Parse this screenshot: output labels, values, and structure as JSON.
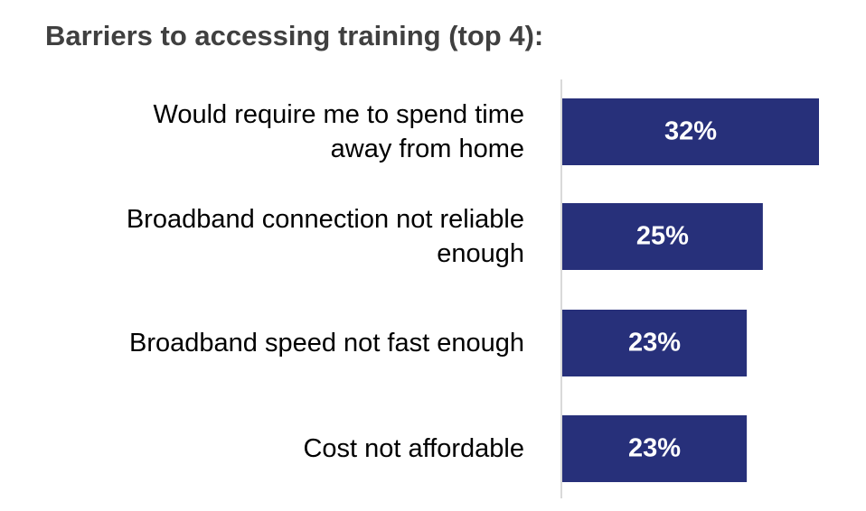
{
  "chart_data": {
    "type": "bar",
    "orientation": "horizontal",
    "title": "Barriers to accessing training (top 4):",
    "categories": [
      [
        "Would require me to spend time",
        "away from home"
      ],
      [
        "Broadband connection not reliable",
        "enough"
      ],
      [
        "Broadband speed not fast enough"
      ],
      [
        "Cost not affordable"
      ]
    ],
    "values": [
      32,
      25,
      23,
      23
    ],
    "value_labels": [
      "32%",
      "25%",
      "23%",
      "23%"
    ],
    "xlim": [
      0,
      32
    ],
    "grid": false,
    "legend": "none",
    "colors": {
      "bar": "#27307a",
      "axis": "#d9d9d9",
      "bar_label": "#ffffff",
      "title": "#404040",
      "category_label": "#000000"
    }
  }
}
